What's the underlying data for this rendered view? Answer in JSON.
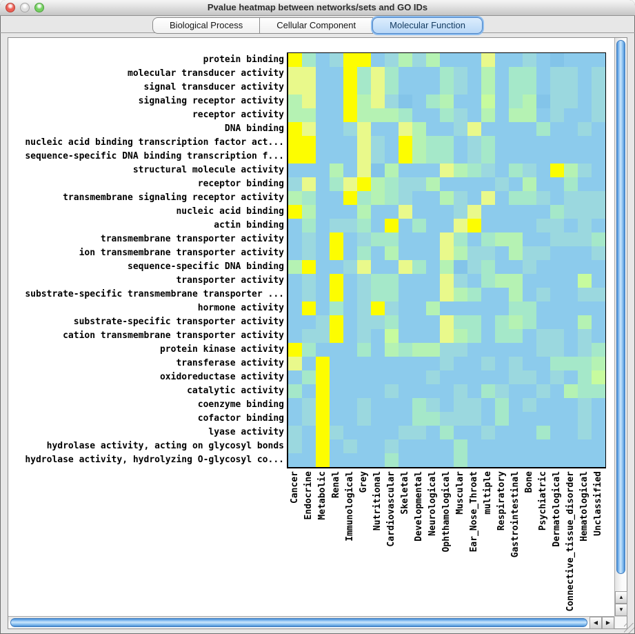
{
  "window": {
    "title": "Pvalue heatmap between networks/sets and GO IDs",
    "controls": [
      "close",
      "minimize",
      "zoom"
    ]
  },
  "tabs": {
    "items": [
      {
        "label": "Biological Process",
        "selected": false
      },
      {
        "label": "Cellular Component",
        "selected": false
      },
      {
        "label": "Molecular Function",
        "selected": true
      }
    ]
  },
  "scrollbar_glyphs": {
    "up": "▲",
    "down": "▼",
    "left": "◀",
    "right": "▶"
  },
  "chart_data": {
    "type": "heatmap",
    "rows": [
      "protein binding",
      "molecular transducer activity",
      "signal transducer activity",
      "signaling receptor activity",
      "receptor activity",
      "DNA binding",
      "nucleic acid binding transcription factor act...",
      "sequence-specific DNA binding transcription f...",
      "structural molecule activity",
      "receptor binding",
      "transmembrane signaling receptor activity",
      "nucleic acid binding",
      "actin binding",
      "transmembrane transporter activity",
      "ion transmembrane transporter activity",
      "sequence-specific DNA binding",
      "transporter activity",
      "substrate-specific transmembrane transporter ...",
      "hormone activity",
      "substrate-specific transporter activity",
      "cation transmembrane transporter activity",
      "protein kinase activity",
      "transferase activity",
      "oxidoreductase activity",
      "catalytic activity",
      "coenzyme binding",
      "cofactor binding",
      "lyase activity",
      "hydrolase activity, acting on glycosyl bonds",
      "hydrolase activity, hydrolyzing O-glycosyl co..."
    ],
    "columns": [
      "Cancer",
      "Endocrine",
      "Metabolic",
      "Renal",
      "Immunological",
      "Grey",
      "Nutritional",
      "Cardiovascular",
      "Skeletal",
      "Developmental",
      "Neurological",
      "Ophthamological",
      "Muscular",
      "Ear_Nose_Throat",
      "multiple",
      "Respiratory",
      "Gastrointestinal",
      "Bone",
      "Psychiatric",
      "Dermatological",
      "Connective_tissue_disorder",
      "Hematological",
      "Unclassified"
    ],
    "palette": {
      "Y": "#fdfd00",
      "y": "#e9f98b",
      "G": "#c7fb9e",
      "g": "#b5f2b3",
      "a": "#a5e8c9",
      "t": "#9bd8df",
      "b": "#8ccbec",
      "B": "#83c4e9"
    },
    "cell_size": [
      20,
      20
    ],
    "cells": [
      "YabtYYbtgtgbbbybbtbBbbb",
      "yybbYayabbbatbgbaabttbt",
      "yybbYayabbbatbgbaabttbt",
      "gybbYgytBbagbbGbagBttbt",
      "ggbbYgggabbatbgbggbtbbt",
      "Yybbtybbygbbtybbbbabbtb",
      "YYbbbytbYgaabtabbbbbbbb",
      "YYbbbytbYgaabtabbbbbbbb",
      "bbbgbyBgbbbygatbatbYgtb",
      "tybayYgattgbbbbtbgbbabb",
      "gabbYagatbbgtbybaatbttt",
      "Ygbbbgbbybbbtybbbbbattt",
      "babttabYbabbyYbbbbttbtb",
      "btbYbtaabbbyabaggbbttta",
      "btbYbabgbbbygttbgttbbbt",
      "gYbbtybbyabgBtabbtbbbbb",
      "btbYbtaabbbytbaggbbbbGb",
      "btbYbtaabbbygabbgbtbbtt",
      "bYbabtYtbbgbbbbbaabbbbb",
      "bbtYbttabbbyaabagabbbgb",
      "bttYbtbGbbbygabaabttbtb",
      "Yabbbabgaggttbbbbbttbta",
      "ybYbbbbbbbbtbbtbtbbaaag",
      "baYbbbbbbbtbbbbbttbtbaG",
      "abYbbbbtbbbbtbatbbtbgaa",
      "btYbbtbbbatbttbabtbbbtb",
      "btYbbtbbbaatttbabbbbbtb",
      "tbYtbbbbttbabbtbbbabbtb",
      "tbYbtbbtbbbbabbbbbbbbbb",
      "bbYbbbbabbbbabbbbbbbbbb"
    ]
  }
}
